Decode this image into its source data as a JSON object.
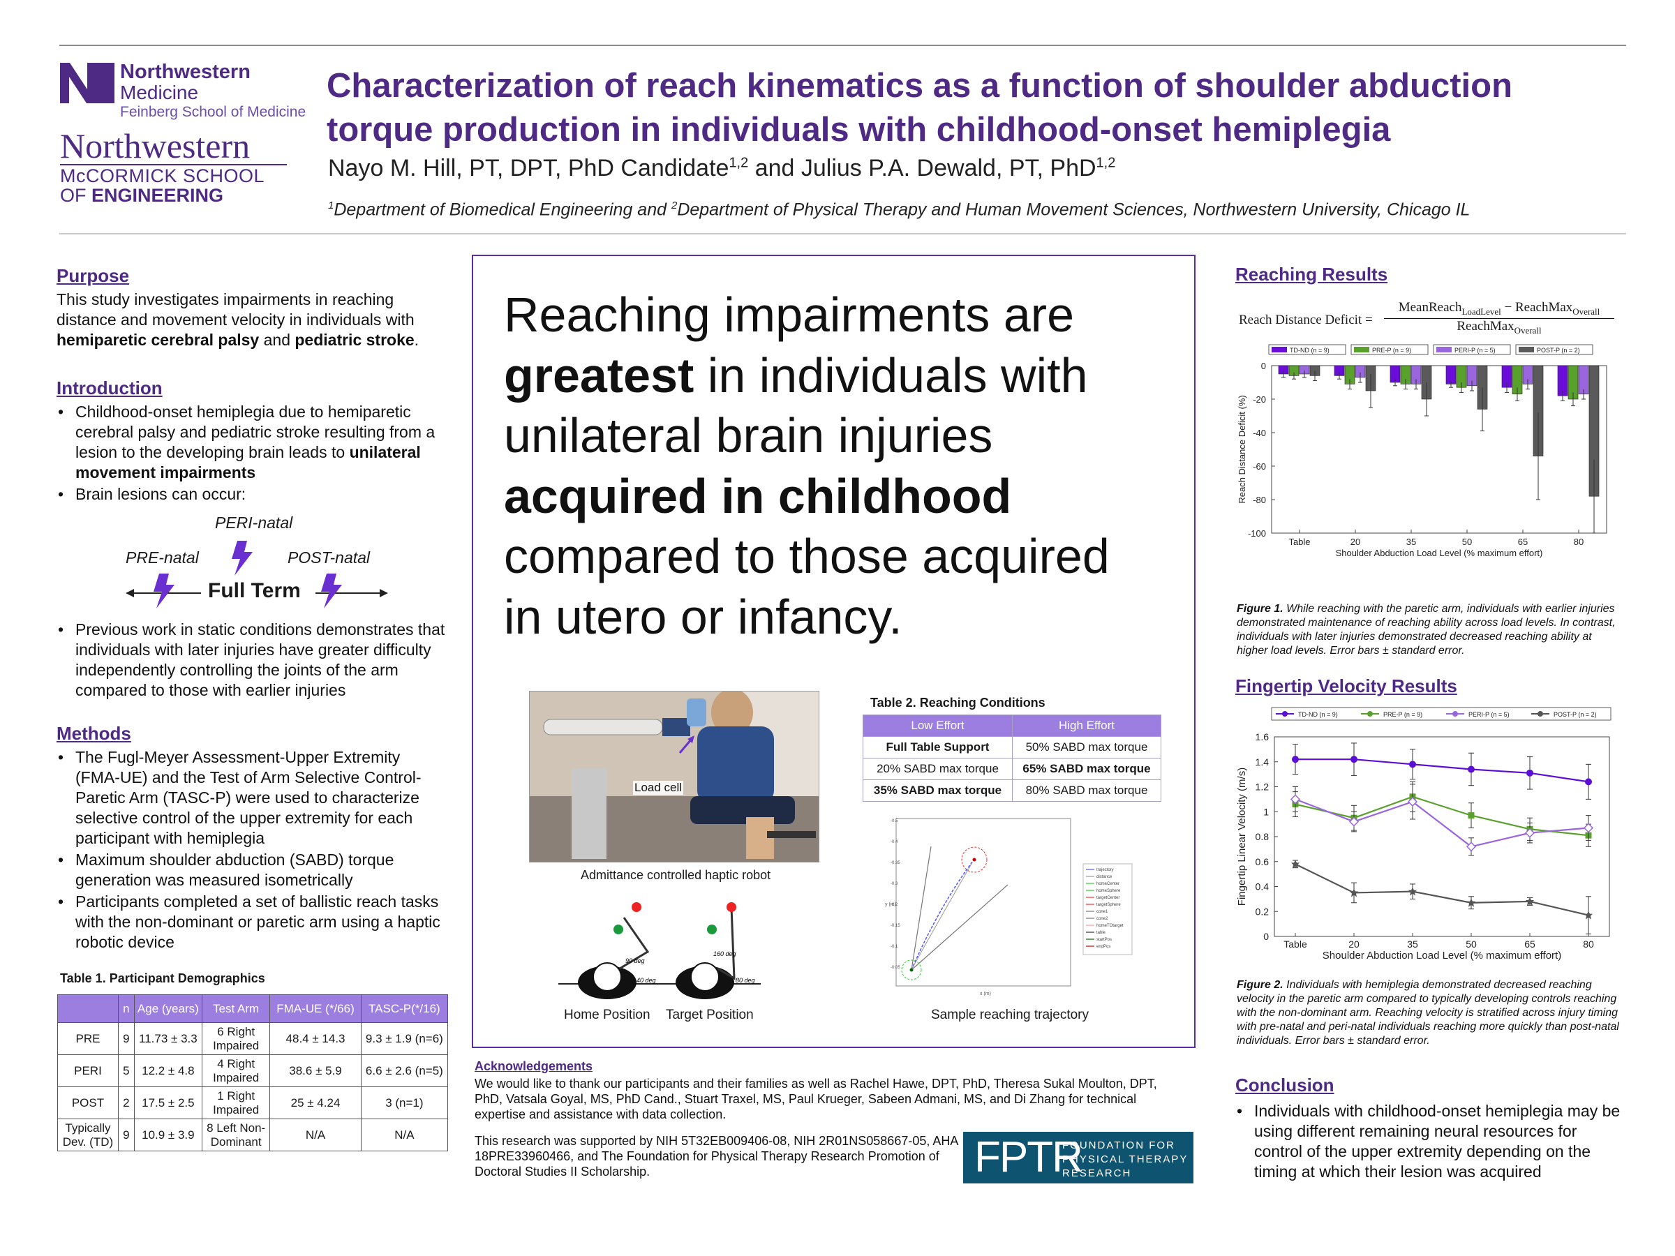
{
  "header": {
    "logo1_line1": "Northwestern",
    "logo1_line2": "Medicine",
    "logo1_line3": "Feinberg School of Medicine",
    "logo2_line1": "Northwestern",
    "logo2_line2": "McCORMICK SCHOOL",
    "logo2_line3a": "OF ",
    "logo2_line3b": "ENGINEERING",
    "title_line1": "Characterization of reach kinematics as a function of shoulder abduction",
    "title_line2": "torque production in individuals with childhood-onset hemiplegia",
    "author1": "Nayo M. Hill, PT, DPT, PhD Candidate",
    "author1_sup": "1,2",
    "author_and": " and Julius P.A. Dewald, PT, PhD",
    "author2_sup": "1,2",
    "aff_sup1": "1",
    "aff_part1": "Department of Biomedical Engineering and ",
    "aff_sup2": "2",
    "aff_part2": "Department of Physical Therapy and Human Movement Sciences, Northwestern University, Chicago IL"
  },
  "purpose": {
    "heading": "Purpose",
    "text1": "This study investigates impairments in reaching distance and movement velocity in individuals with ",
    "bold1": "hemiparetic cerebral palsy",
    "text2": " and ",
    "bold2": "pediatric stroke",
    "text3": "."
  },
  "introduction": {
    "heading": "Introduction",
    "b1_text": "Childhood-onset hemiplegia due to hemiparetic cerebral palsy and pediatric stroke resulting from a lesion to the developing brain leads to ",
    "b1_bold": "unilateral movement impairments",
    "b2": "Brain lesions can occur:",
    "b3": "Previous work in static conditions demonstrates that individuals with later injuries have greater difficulty independently controlling the joints of the arm compared to those with earlier injuries",
    "timeline": {
      "peri": "PERI-natal",
      "pre": "PRE-natal",
      "post": "POST-natal",
      "full": "Full Term"
    }
  },
  "methods": {
    "heading": "Methods",
    "b1": "The Fugl-Meyer Assessment-Upper Extremity (FMA-UE) and the Test of Arm Selective Control-Paretic Arm (TASC-P) were used to characterize selective control of the upper extremity for each participant with hemiplegia",
    "b2": "Maximum shoulder abduction (SABD) torque generation was measured isometrically",
    "b3": "Participants completed a set of ballistic reach tasks with the non-dominant or paretic arm using a haptic robotic device"
  },
  "table1": {
    "title": "Table 1. Participant Demographics",
    "headers": [
      "",
      "n",
      "Age (years)",
      "Test Arm",
      "FMA-UE (*/66)",
      "TASC-P(*/16)"
    ],
    "rows": [
      [
        "PRE",
        "9",
        "11.73 ± 3.3",
        "6 Right Impaired",
        "48.4 ± 14.3",
        "9.3 ± 1.9 (n=6)"
      ],
      [
        "PERI",
        "5",
        "12.2 ± 4.8",
        "4 Right Impaired",
        "38.6 ± 5.9",
        "6.6 ± 2.6 (n=5)"
      ],
      [
        "POST",
        "2",
        "17.5 ± 2.5",
        "1 Right Impaired",
        "25 ± 4.24",
        "3 (n=1)"
      ],
      [
        "Typically Dev. (TD)",
        "9",
        "10.9 ± 3.9",
        "8 Left Non-Dominant",
        "N/A",
        "N/A"
      ]
    ]
  },
  "center": {
    "l1": "Reaching impairments are",
    "l2b": "greatest",
    "l2": " in individuals with",
    "l3": "unilateral brain injuries",
    "l4b": "acquired in childhood",
    "l5": "compared to those acquired",
    "l6": "in utero or infancy.",
    "photo_label": "Load cell",
    "photo_caption": "Admittance controlled haptic robot",
    "home_caption": "Home Position",
    "target_caption": "Target Position",
    "deg90": "90 deg",
    "deg40": "40 deg",
    "deg160": "160 deg",
    "deg80": "80 deg",
    "traj_caption": "Sample reaching trajectory",
    "traj_legend": [
      "trajectory",
      "distance",
      "homeCenter",
      "homeSphere",
      "targetCenter",
      "targetSphere",
      "cone1",
      "cone2",
      "homeTOtarget",
      "table",
      "startPos",
      "endPos"
    ],
    "traj_xlabel": "x (m)",
    "traj_ylabel": "y (m)"
  },
  "table2": {
    "title": "Table 2. Reaching Conditions",
    "headers": [
      "Low Effort",
      "High Effort"
    ],
    "rows": [
      [
        "Full Table Support",
        "50% SABD max torque"
      ],
      [
        "20% SABD max torque",
        "65% SABD max torque"
      ],
      [
        "35% SABD max torque",
        "80% SABD max torque"
      ]
    ]
  },
  "acknowledgements": {
    "heading": "Acknowledgements",
    "text": "We would like to thank our participants and their families as well as Rachel Hawe, DPT, PhD, Theresa Sukal Moulton, DPT, PhD, Vatsala Goyal, MS, PhD Cand., Stuart Traxel, MS, Paul Krueger, Sabeen Admani, MS, and Di Zhang for technical expertise and assistance with data collection.",
    "funding": "This research was supported by NIH 5T32EB009406-08, NIH 2R01NS058667-05, AHA 18PRE33960466, and The Foundation for Physical Therapy Research Promotion of Doctoral Studies II Scholarship.",
    "fptr_logo": "FPTR",
    "fptr_line1": "FOUNDATION FOR",
    "fptr_line2": "PHYSICAL THERAPY",
    "fptr_line3": "RESEARCH"
  },
  "reaching": {
    "heading": "Reaching Results",
    "formula_left": "Reach Distance Deficit =",
    "formula_num_a": "MeanReach",
    "formula_num_sub": "LoadLevel",
    "formula_num_b": " − ReachMax",
    "formula_num_sub2": "Overall",
    "formula_den": "ReachMax",
    "formula_den_sub": "Overall",
    "caption_bold": "Figure 1.",
    "caption": " While reaching with the paretic arm, individuals with earlier injuries demonstrated maintenance of reaching ability across load levels. In contrast, individuals with later injuries demonstrated decreased reaching ability at higher load levels. Error bars ± standard error."
  },
  "velocity": {
    "heading": "Fingertip Velocity Results",
    "caption_bold": "Figure 2.",
    "caption": " Individuals with hemiplegia demonstrated decreased reaching velocity in the paretic arm compared to typically developing controls reaching with the non-dominant arm. Reaching velocity is stratified across injury timing with pre-natal and peri-natal individuals reaching more quickly than post-natal individuals. Error bars ± standard error."
  },
  "conclusion": {
    "heading": "Conclusion",
    "b1": "Individuals with childhood-onset hemiplegia may be using different remaining neural resources for control of the upper extremity depending on the timing at which their lesion was acquired"
  },
  "colors": {
    "accent": "#4e2a84",
    "td": "#5b0fd4",
    "pre": "#5aa02c",
    "peri": "#9966dd",
    "post": "#555555"
  },
  "chart_data": [
    {
      "type": "bar",
      "categories": [
        "Table",
        "20",
        "35",
        "50",
        "65",
        "80"
      ],
      "xlabel": "Shoulder Abduction Load Level (% maximum effort)",
      "ylabel": "Reach Distance Deficit (%)",
      "ylim": [
        -100,
        0
      ],
      "yticks": [
        0,
        -20,
        -40,
        -60,
        -80,
        -100
      ],
      "legend_position": "top",
      "series": [
        {
          "name": "TD-ND (n = 9)",
          "color": "#6a0dd8",
          "values": [
            -5,
            -6,
            -10,
            -11,
            -13,
            -18
          ],
          "err": [
            2,
            2,
            2,
            2,
            3,
            3
          ]
        },
        {
          "name": "PRE-P (n = 9)",
          "color": "#5aa02c",
          "values": [
            -6,
            -11,
            -11,
            -13,
            -17,
            -20
          ],
          "err": [
            2,
            3,
            3,
            3,
            4,
            4
          ]
        },
        {
          "name": "PERI-P (n = 5)",
          "color": "#9966dd",
          "values": [
            -5,
            -7,
            -11,
            -12,
            -11,
            -17
          ],
          "err": [
            2,
            3,
            3,
            3,
            3,
            3
          ]
        },
        {
          "name": "POST-P (n = 2)",
          "color": "#5a5a5a",
          "values": [
            -6,
            -15,
            -20,
            -26,
            -54,
            -78
          ],
          "err": [
            3,
            10,
            10,
            13,
            26,
            22
          ]
        }
      ]
    },
    {
      "type": "line",
      "categories": [
        "Table",
        "20",
        "35",
        "50",
        "65",
        "80"
      ],
      "xlabel": "Shoulder Abduction Load Level (% maximum effort)",
      "ylabel": "Fingertip Linear Velocity (m/s)",
      "ylim": [
        0,
        1.6
      ],
      "yticks": [
        0,
        0.2,
        0.4,
        0.6,
        0.8,
        1,
        1.2,
        1.4,
        1.6
      ],
      "legend_position": "top",
      "series": [
        {
          "name": "TD-ND (n = 9)",
          "color": "#5b0fd4",
          "marker": "circle",
          "values": [
            1.42,
            1.42,
            1.38,
            1.34,
            1.31,
            1.24
          ],
          "err": [
            0.12,
            0.13,
            0.12,
            0.13,
            0.13,
            0.14
          ]
        },
        {
          "name": "PRE-P (n = 9)",
          "color": "#5aa02c",
          "marker": "square",
          "values": [
            1.06,
            0.95,
            1.12,
            0.97,
            0.86,
            0.81
          ],
          "err": [
            0.1,
            0.1,
            0.12,
            0.1,
            0.09,
            0.09
          ]
        },
        {
          "name": "PERI-P (n = 5)",
          "color": "#9966dd",
          "marker": "diamond",
          "values": [
            1.1,
            0.92,
            1.08,
            0.72,
            0.83,
            0.87
          ],
          "err": [
            0.1,
            0.08,
            0.14,
            0.07,
            0.08,
            0.1
          ]
        },
        {
          "name": "POST-P (n = 2)",
          "color": "#555555",
          "marker": "star",
          "values": [
            0.58,
            0.35,
            0.36,
            0.27,
            0.28,
            0.17
          ],
          "err": [
            0.03,
            0.08,
            0.06,
            0.05,
            0.03,
            0.15
          ]
        }
      ]
    }
  ]
}
